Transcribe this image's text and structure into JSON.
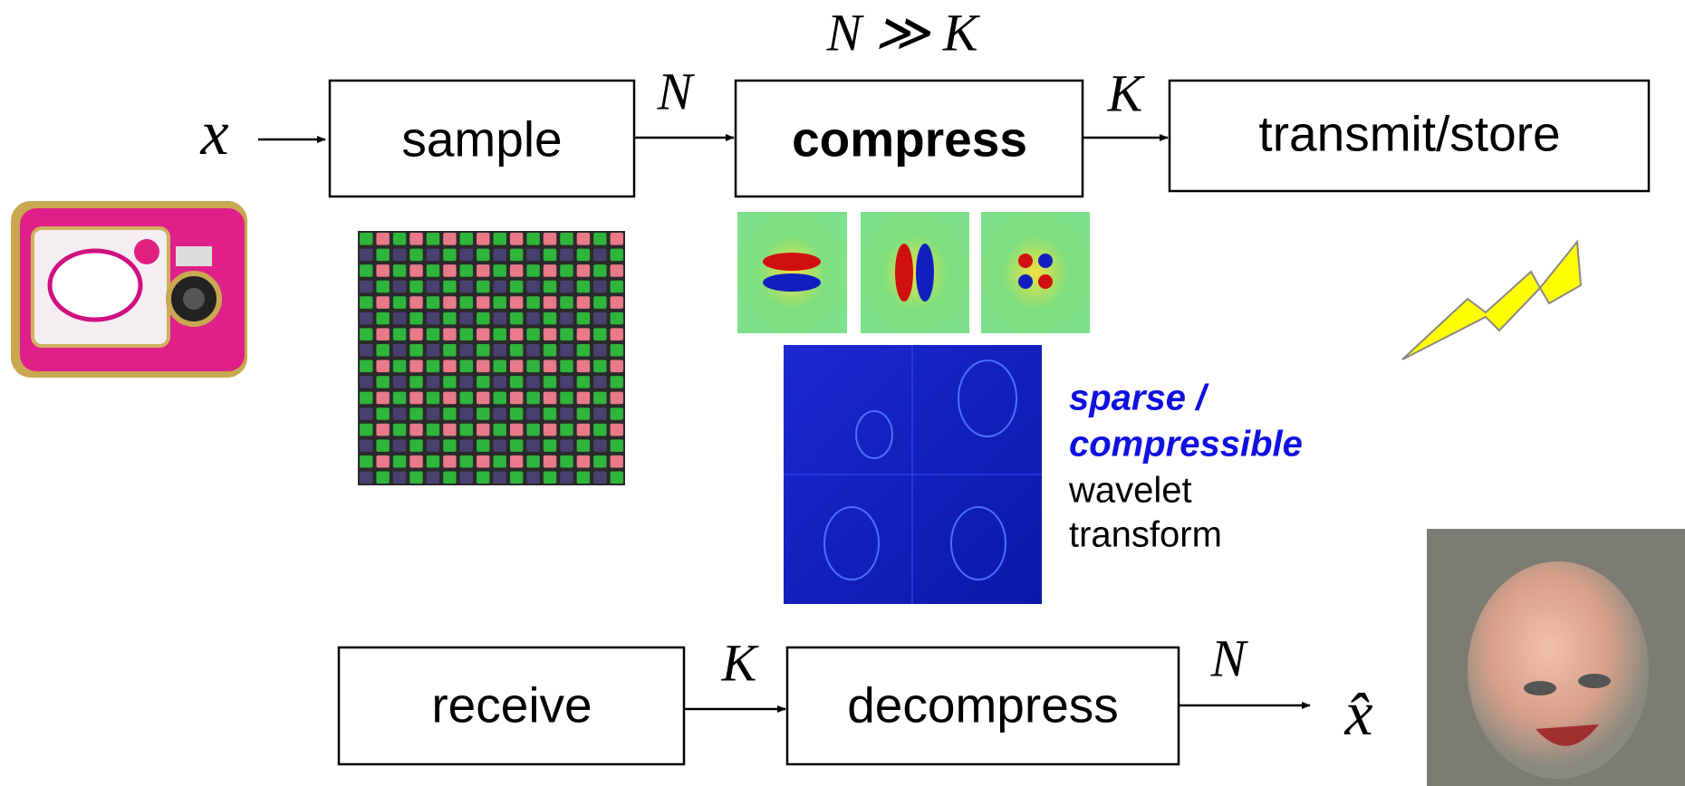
{
  "relation": "N ≫ K",
  "top_row": {
    "input": "x",
    "nodes": [
      "sample",
      "compress",
      "transmit/store"
    ],
    "edge_labels": [
      "N",
      "K"
    ]
  },
  "annotation": {
    "emphasis_lines": [
      "sparse /",
      "compressible"
    ],
    "plain_lines": [
      "wavelet",
      "transform"
    ]
  },
  "bottom_row": {
    "nodes": [
      "receive",
      "decompress"
    ],
    "edge_labels": [
      "K",
      "N"
    ],
    "output": "x̂"
  }
}
